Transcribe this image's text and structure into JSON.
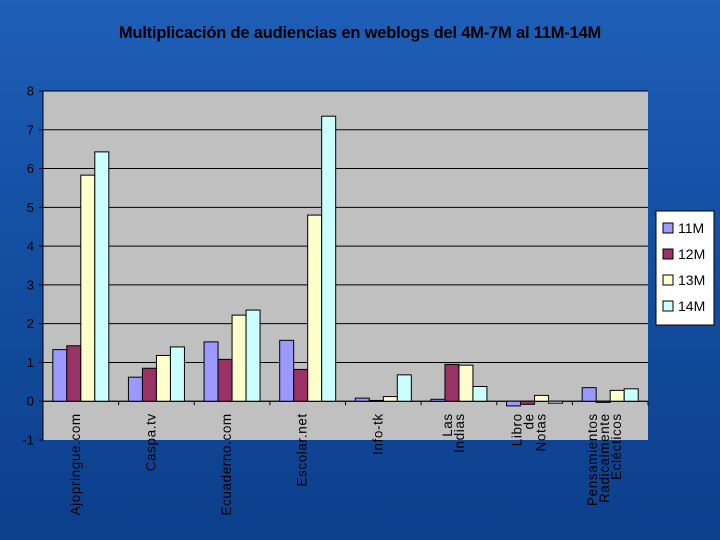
{
  "chart_data": {
    "type": "bar",
    "title": "Multiplicación de audiencias en weblogs del 4M-7M al 11M-14M",
    "categories": [
      "Ajopringue.com",
      "Caspa.tv",
      "Ecuaderno.com",
      "Escolar.net",
      "Info-tk",
      "Las Indias",
      "Libro de Notas",
      "Pensamientos Radicalmente Eclécticos"
    ],
    "series": [
      {
        "name": "11M",
        "color": "#9999ff",
        "values": [
          1.33,
          0.62,
          1.53,
          1.57,
          0.08,
          0.05,
          -0.12,
          0.35
        ]
      },
      {
        "name": "12M",
        "color": "#993366",
        "values": [
          1.43,
          0.85,
          1.08,
          0.82,
          0.02,
          0.95,
          -0.08,
          -0.03
        ]
      },
      {
        "name": "13M",
        "color": "#ffffcc",
        "values": [
          5.83,
          1.18,
          2.22,
          4.8,
          0.12,
          0.93,
          0.15,
          0.28
        ]
      },
      {
        "name": "14M",
        "color": "#ccffff",
        "values": [
          6.43,
          1.4,
          2.35,
          7.35,
          0.68,
          0.38,
          -0.05,
          0.32
        ]
      }
    ],
    "ylim": [
      -1,
      8
    ],
    "yticks": [
      "-1",
      "0",
      "1",
      "2",
      "3",
      "4",
      "5",
      "6",
      "7",
      "8"
    ],
    "xlabel": "",
    "ylabel": "",
    "grid": true,
    "legend_position": "right",
    "plot_background": "#c0c0c0"
  }
}
